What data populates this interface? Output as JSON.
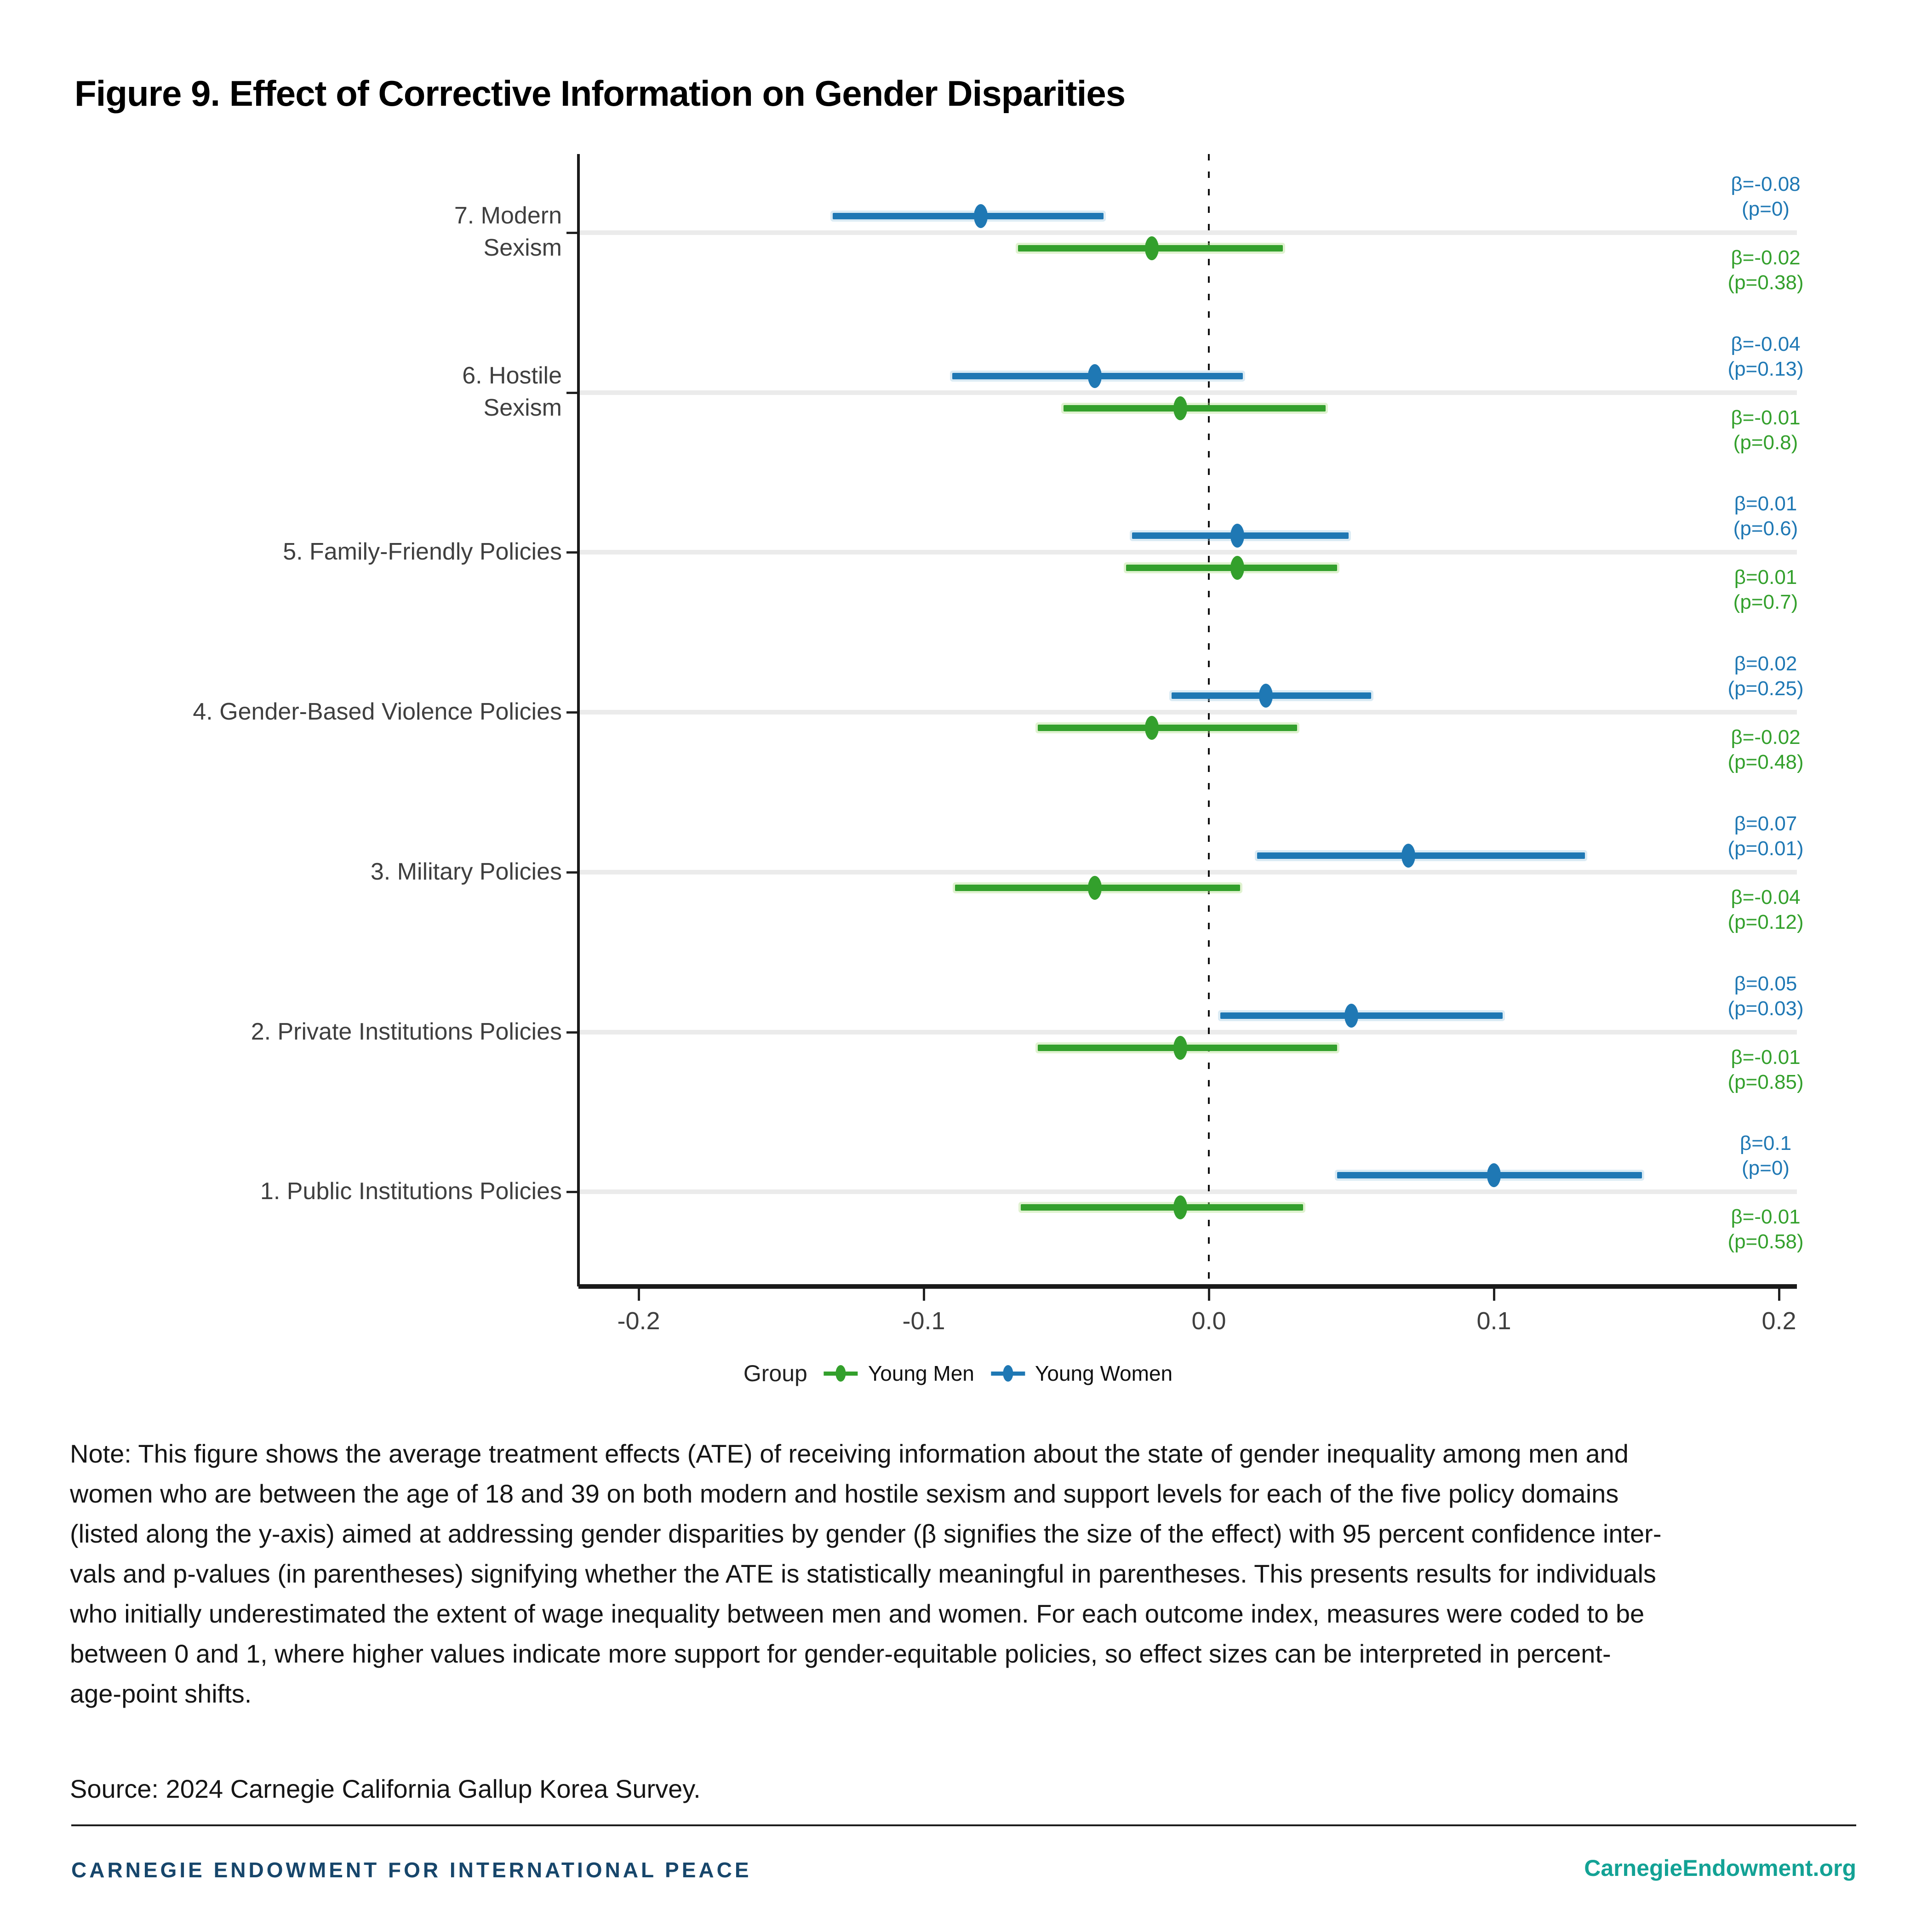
{
  "title": "Figure 9. Effect of Corrective Information on Gender Disparities",
  "chart_data": {
    "type": "scatter",
    "variant": "forest-plot-pointrange",
    "title": "Figure 9. Effect of Corrective Information on Gender Disparities",
    "xlabel": "",
    "ylabel": "",
    "x_ticks": [
      "-0.2",
      "-0.1",
      "0.0",
      "0.1",
      "0.2"
    ],
    "x_tick_values": [
      -0.2,
      -0.1,
      0,
      0.1,
      0.2
    ],
    "xlim": [
      -0.2203,
      0.2058
    ],
    "zero_reference_line": 0,
    "grid": "light category stripes",
    "legend": {
      "title": "Group",
      "position": "bottom-center",
      "entries": [
        {
          "label": "Young Men",
          "color": "#33a02c",
          "light_color": "#b2df8a"
        },
        {
          "label": "Young Women",
          "color": "#1f78b4",
          "light_color": "#a6cee3"
        }
      ]
    },
    "categories": [
      {
        "label_lines": [
          "7. Modern",
          "Sexism"
        ],
        "young_women": {
          "beta": -0.08,
          "beta_label": "β=-0.08",
          "p_label": "(p=0)",
          "ci": [
            -0.132,
            -0.037
          ]
        },
        "young_men": {
          "beta": -0.02,
          "beta_label": "β=-0.02",
          "p_label": "(p=0.38)",
          "ci": [
            -0.067,
            0.026
          ]
        }
      },
      {
        "label_lines": [
          "6. Hostile",
          "Sexism"
        ],
        "young_women": {
          "beta": -0.04,
          "beta_label": "β=-0.04",
          "p_label": "(p=0.13)",
          "ci": [
            -0.09,
            0.012
          ]
        },
        "young_men": {
          "beta": -0.01,
          "beta_label": "β=-0.01",
          "p_label": "(p=0.8)",
          "ci": [
            -0.051,
            0.041
          ]
        }
      },
      {
        "label_lines": [
          "5. Family-Friendly Policies"
        ],
        "young_women": {
          "beta": 0.01,
          "beta_label": "β=0.01",
          "p_label": "(p=0.6)",
          "ci": [
            -0.027,
            0.049
          ]
        },
        "young_men": {
          "beta": 0.01,
          "beta_label": "β=0.01",
          "p_label": "(p=0.7)",
          "ci": [
            -0.029,
            0.045
          ]
        }
      },
      {
        "label_lines": [
          "4. Gender-Based Violence Policies"
        ],
        "young_women": {
          "beta": 0.02,
          "beta_label": "β=0.02",
          "p_label": "(p=0.25)",
          "ci": [
            -0.013,
            0.057
          ]
        },
        "young_men": {
          "beta": -0.02,
          "beta_label": "β=-0.02",
          "p_label": "(p=0.48)",
          "ci": [
            -0.06,
            0.031
          ]
        }
      },
      {
        "label_lines": [
          "3. Military Policies"
        ],
        "young_women": {
          "beta": 0.07,
          "beta_label": "β=0.07",
          "p_label": "(p=0.01)",
          "ci": [
            0.017,
            0.132
          ]
        },
        "young_men": {
          "beta": -0.04,
          "beta_label": "β=-0.04",
          "p_label": "(p=0.12)",
          "ci": [
            -0.089,
            0.011
          ]
        }
      },
      {
        "label_lines": [
          "2. Private Institutions Policies"
        ],
        "young_women": {
          "beta": 0.05,
          "beta_label": "β=0.05",
          "p_label": "(p=0.03)",
          "ci": [
            0.004,
            0.103
          ]
        },
        "young_men": {
          "beta": -0.01,
          "beta_label": "β=-0.01",
          "p_label": "(p=0.85)",
          "ci": [
            -0.06,
            0.045
          ]
        }
      },
      {
        "label_lines": [
          "1. Public Institutions Policies"
        ],
        "young_women": {
          "beta": 0.1,
          "beta_label": "β=0.1",
          "p_label": "(p=0)",
          "ci": [
            0.045,
            0.152
          ]
        },
        "young_men": {
          "beta": -0.01,
          "beta_label": "β=-0.01",
          "p_label": "(p=0.58)",
          "ci": [
            -0.066,
            0.033
          ]
        }
      }
    ],
    "colors": {
      "young_women": "#1f78b4",
      "young_women_light": "#a6cee3",
      "young_men": "#33a02c",
      "young_men_light": "#b2df8a",
      "stripe": "#ebebeb",
      "axis": "#1a1a1a",
      "tick_label": "#3f3f3f",
      "zero_line": "#111111"
    }
  },
  "note_lines": [
    "Note: This figure shows the average treatment effects (ATE) of receiving information about the state of gender inequality among men and",
    "women who are between the age of 18 and 39 on both modern and hostile sexism and support levels for each of the five policy domains",
    "(listed along the y-axis) aimed at addressing gender disparities by gender (β signifies the size of the effect) with 95 percent confidence inter-",
    "vals and p-values (in parentheses) signifying whether the ATE is statistically meaningful in parentheses. This presents results for individuals",
    "who initially underestimated the extent of wage inequality between men and women. For each outcome index, measures were coded to be",
    "between 0 and 1, where higher values indicate more support for gender-equitable policies, so effect sizes can be interpreted in percent-",
    "age-point shifts."
  ],
  "source": "Source: 2024 Carnegie California Gallup Korea Survey.",
  "footer": {
    "org": "CARNEGIE ENDOWMENT FOR INTERNATIONAL PEACE",
    "url": "CarnegieEndowment.org"
  }
}
